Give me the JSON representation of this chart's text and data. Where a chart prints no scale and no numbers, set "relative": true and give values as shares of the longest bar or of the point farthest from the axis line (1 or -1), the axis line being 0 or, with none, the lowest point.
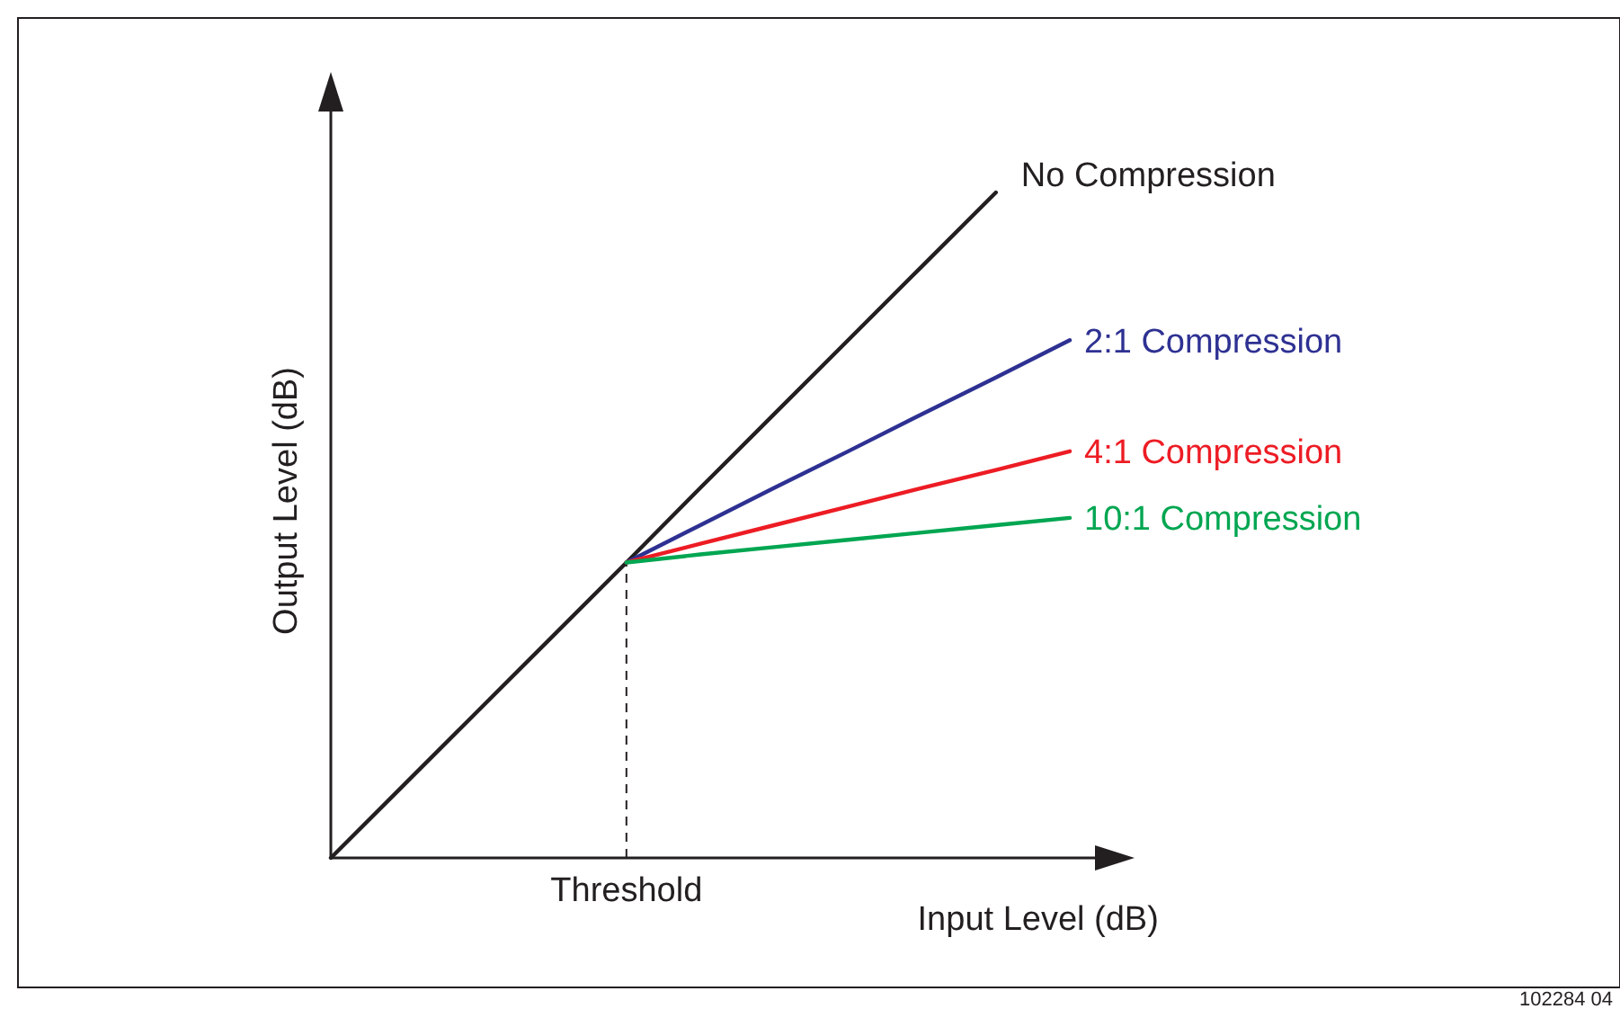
{
  "chart_data": {
    "type": "line",
    "relative": true,
    "xlabel": "Input Level (dB)",
    "ylabel": "Output Level (dB)",
    "line_style": "solid",
    "marker": "none",
    "categories": [
      null,
      null,
      null,
      null,
      null,
      null,
      null,
      null,
      null,
      null,
      null
    ],
    "series": [
      {
        "name": "No Compression",
        "color": "#231f20",
        "values": [
          0,
          0.111,
          0.222,
          0.333,
          0.444,
          0.556,
          0.667,
          0.778,
          0.889,
          1,
          null
        ]
      },
      {
        "name": "2:1 Compression",
        "color": "#2e3192",
        "values": [
          null,
          null,
          null,
          null,
          0.444,
          0.5,
          0.556,
          0.611,
          0.667,
          0.722,
          0.778
        ]
      },
      {
        "name": "4:1 Compression",
        "color": "#ed1c24",
        "values": [
          null,
          null,
          null,
          null,
          0.444,
          0.472,
          0.5,
          0.528,
          0.556,
          0.583,
          0.611
        ]
      },
      {
        "name": "10:1 Compression",
        "color": "#00a651",
        "values": [
          null,
          null,
          null,
          null,
          0.444,
          0.456,
          0.467,
          0.478,
          0.489,
          0.5,
          0.511
        ]
      }
    ],
    "ref_lines": [
      {
        "axis": "x",
        "label": "Threshold",
        "line_style": "dashed",
        "color": "#231f20"
      }
    ],
    "annotations": [
      "102284 04"
    ]
  }
}
